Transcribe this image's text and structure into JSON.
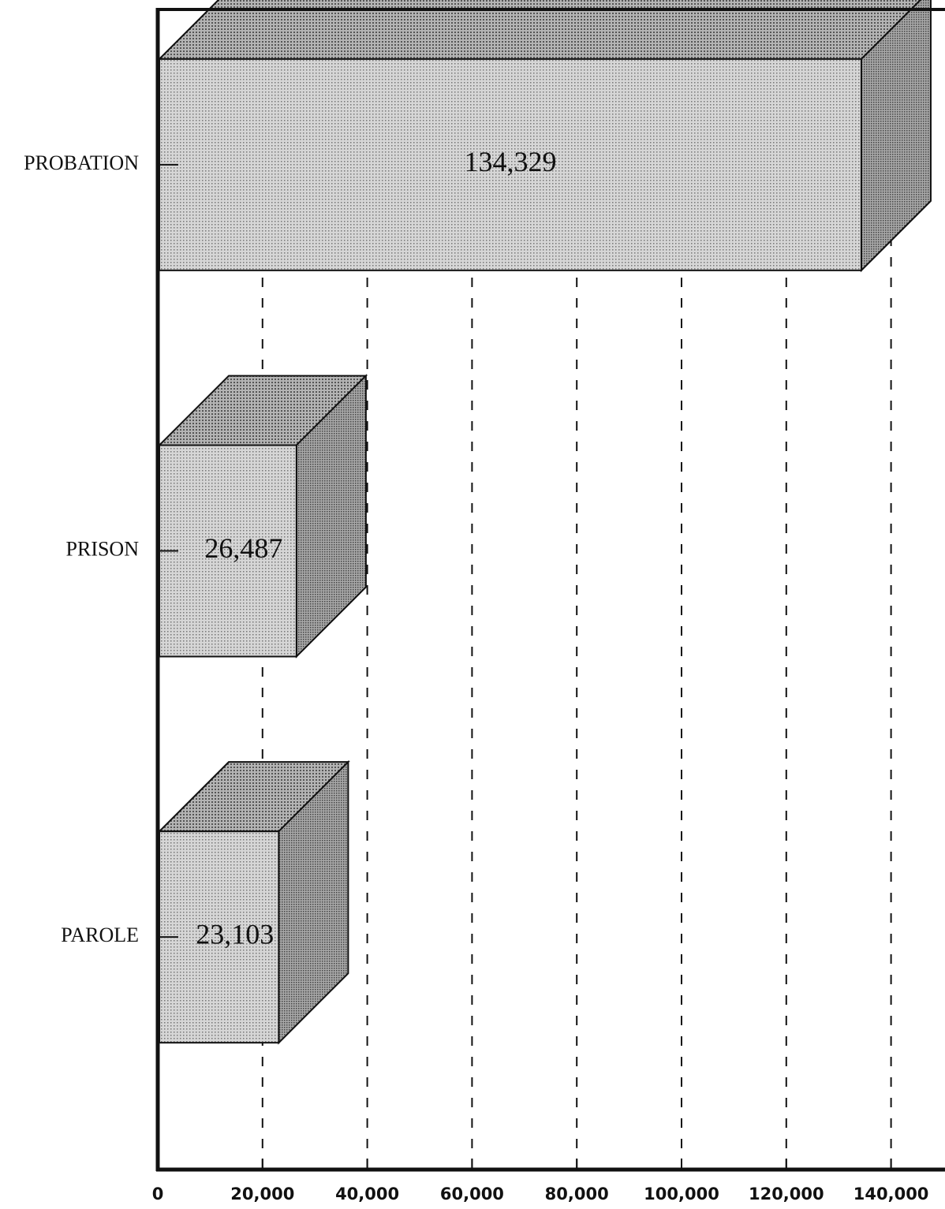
{
  "chart_data": {
    "type": "bar3d",
    "orientation": "horizontal",
    "categories": [
      "PROBATION",
      "PRISON",
      "PAROLE"
    ],
    "values": [
      134329,
      26487,
      23103
    ],
    "value_labels": [
      "134,329",
      "26,487",
      "23,103"
    ],
    "color": "#c4c4c4",
    "xlim": [
      0,
      150000
    ],
    "xticks": [
      0,
      {
        "value": 20000,
        "label": "20,000"
      },
      {
        "value": 40000,
        "label": "40,000"
      },
      {
        "value": 60000,
        "label": "60,000"
      },
      {
        "value": 80000,
        "label": "80,000"
      },
      {
        "value": 100000,
        "label": "100,000"
      },
      {
        "value": 120000,
        "label": "120,000"
      },
      {
        "value": 140000,
        "label": "140,000"
      }
    ],
    "grid": true
  }
}
